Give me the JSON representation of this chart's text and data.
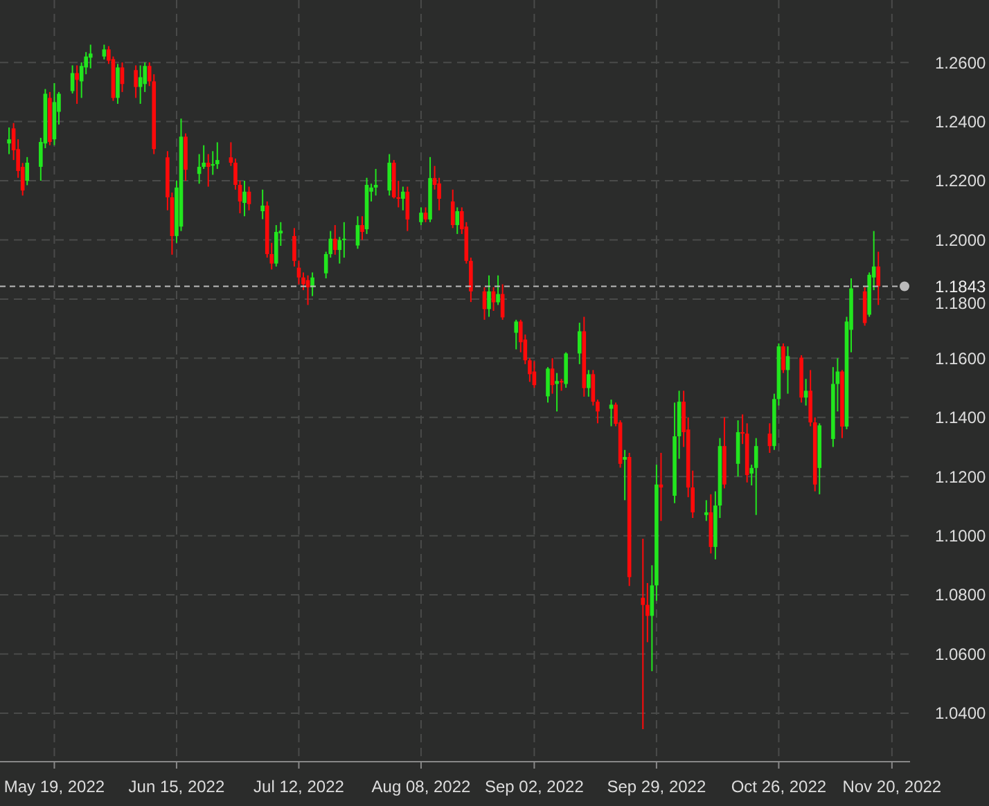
{
  "chart_data": {
    "type": "candlestick",
    "x": [
      "2022-05-09",
      "2022-05-10",
      "2022-05-11",
      "2022-05-12",
      "2022-05-13",
      "2022-05-16",
      "2022-05-17",
      "2022-05-18",
      "2022-05-19",
      "2022-05-20",
      "2022-05-23",
      "2022-05-24",
      "2022-05-25",
      "2022-05-26",
      "2022-05-27",
      "2022-05-30",
      "2022-05-31",
      "2022-06-01",
      "2022-06-02",
      "2022-06-03",
      "2022-06-06",
      "2022-06-07",
      "2022-06-08",
      "2022-06-09",
      "2022-06-10",
      "2022-06-13",
      "2022-06-14",
      "2022-06-15",
      "2022-06-16",
      "2022-06-17",
      "2022-06-20",
      "2022-06-21",
      "2022-06-22",
      "2022-06-23",
      "2022-06-24",
      "2022-06-27",
      "2022-06-28",
      "2022-06-29",
      "2022-06-30",
      "2022-07-01",
      "2022-07-04",
      "2022-07-05",
      "2022-07-06",
      "2022-07-07",
      "2022-07-08",
      "2022-07-11",
      "2022-07-12",
      "2022-07-13",
      "2022-07-14",
      "2022-07-15",
      "2022-07-18",
      "2022-07-19",
      "2022-07-20",
      "2022-07-21",
      "2022-07-22",
      "2022-07-25",
      "2022-07-26",
      "2022-07-27",
      "2022-07-28",
      "2022-07-29",
      "2022-08-01",
      "2022-08-02",
      "2022-08-03",
      "2022-08-04",
      "2022-08-05",
      "2022-08-08",
      "2022-08-09",
      "2022-08-10",
      "2022-08-11",
      "2022-08-12",
      "2022-08-15",
      "2022-08-16",
      "2022-08-17",
      "2022-08-18",
      "2022-08-19",
      "2022-08-22",
      "2022-08-23",
      "2022-08-24",
      "2022-08-25",
      "2022-08-26",
      "2022-08-29",
      "2022-08-30",
      "2022-08-31",
      "2022-09-01",
      "2022-09-02",
      "2022-09-05",
      "2022-09-06",
      "2022-09-07",
      "2022-09-08",
      "2022-09-09",
      "2022-09-12",
      "2022-09-13",
      "2022-09-14",
      "2022-09-15",
      "2022-09-16",
      "2022-09-19",
      "2022-09-20",
      "2022-09-21",
      "2022-09-22",
      "2022-09-23",
      "2022-09-26",
      "2022-09-27",
      "2022-09-28",
      "2022-09-29",
      "2022-09-30",
      "2022-10-03",
      "2022-10-04",
      "2022-10-05",
      "2022-10-06",
      "2022-10-07",
      "2022-10-10",
      "2022-10-11",
      "2022-10-12",
      "2022-10-13",
      "2022-10-14",
      "2022-10-17",
      "2022-10-18",
      "2022-10-19",
      "2022-10-20",
      "2022-10-21",
      "2022-10-24",
      "2022-10-25",
      "2022-10-26",
      "2022-10-27",
      "2022-10-28",
      "2022-10-31",
      "2022-11-01",
      "2022-11-02",
      "2022-11-03",
      "2022-11-04",
      "2022-11-07",
      "2022-11-08",
      "2022-11-09",
      "2022-11-10",
      "2022-11-11",
      "2022-11-14",
      "2022-11-15",
      "2022-11-16",
      "2022-11-17"
    ],
    "ohlc": [
      [
        1.2326,
        1.238,
        1.229,
        1.234
      ],
      [
        1.2377,
        1.2395,
        1.227,
        1.2303
      ],
      [
        1.2307,
        1.234,
        1.221,
        1.2233
      ],
      [
        1.2247,
        1.226,
        1.215,
        1.2167
      ],
      [
        1.22,
        1.228,
        1.2185,
        1.2261
      ],
      [
        1.2247,
        1.2345,
        1.22,
        1.2331
      ],
      [
        1.2326,
        1.251,
        1.231,
        1.2494
      ],
      [
        1.248,
        1.25,
        1.232,
        1.2331
      ],
      [
        1.234,
        1.253,
        1.232,
        1.2466
      ],
      [
        1.2433,
        1.25,
        1.239,
        1.2494
      ],
      [
        1.2503,
        1.259,
        1.2495,
        1.2564
      ],
      [
        1.2564,
        1.259,
        1.246,
        1.2541
      ],
      [
        1.2536,
        1.26,
        1.248,
        1.2588
      ],
      [
        1.2583,
        1.2635,
        1.256,
        1.262
      ],
      [
        1.2616,
        1.266,
        1.258,
        1.263
      ],
      [
        1.262,
        1.266,
        1.261,
        1.2644
      ],
      [
        1.2644,
        1.2655,
        1.2595,
        1.2606
      ],
      [
        1.2611,
        1.262,
        1.247,
        1.248
      ],
      [
        1.248,
        1.2595,
        1.246,
        1.2583
      ],
      [
        1.2583,
        1.26,
        1.25,
        1.2527
      ],
      [
        1.2574,
        1.259,
        1.248,
        1.2517
      ],
      [
        1.2517,
        1.259,
        1.246,
        1.255
      ],
      [
        1.2527,
        1.26,
        1.25,
        1.2588
      ],
      [
        1.2588,
        1.26,
        1.252,
        1.2536
      ],
      [
        1.2536,
        1.256,
        1.229,
        1.2307
      ],
      [
        1.2279,
        1.23,
        1.21,
        1.2144
      ],
      [
        1.2144,
        1.216,
        1.195,
        1.2013
      ],
      [
        1.2013,
        1.22,
        1.199,
        1.2177
      ],
      [
        1.2045,
        1.241,
        1.203,
        1.2349
      ],
      [
        1.2349,
        1.236,
        1.22,
        1.2237
      ],
      [
        1.2223,
        1.229,
        1.219,
        1.2247
      ],
      [
        1.2247,
        1.232,
        1.224,
        1.2261
      ],
      [
        1.2261,
        1.229,
        1.218,
        1.2247
      ],
      [
        1.2251,
        1.23,
        1.222,
        1.2256
      ],
      [
        1.2256,
        1.233,
        1.224,
        1.227
      ],
      [
        1.2279,
        1.233,
        1.225,
        1.2261
      ],
      [
        1.2261,
        1.2275,
        1.217,
        1.2186
      ],
      [
        1.2186,
        1.22,
        1.209,
        1.213
      ],
      [
        1.2125,
        1.22,
        1.208,
        1.2163
      ],
      [
        1.2163,
        1.218,
        1.21,
        1.2121
      ],
      [
        1.2097,
        1.217,
        1.207,
        1.2116
      ],
      [
        1.2116,
        1.213,
        1.194,
        1.1952
      ],
      [
        1.1952,
        1.199,
        1.19,
        1.192
      ],
      [
        1.192,
        1.205,
        1.191,
        1.2027
      ],
      [
        1.2022,
        1.206,
        1.198,
        1.2031
      ],
      [
        1.2013,
        1.204,
        1.191,
        1.1929
      ],
      [
        1.1906,
        1.193,
        1.185,
        1.1873
      ],
      [
        1.1873,
        1.189,
        1.183,
        1.185
      ],
      [
        1.1864,
        1.188,
        1.178,
        1.184
      ],
      [
        1.184,
        1.189,
        1.181,
        1.1873
      ],
      [
        1.1887,
        1.196,
        1.187,
        1.1952
      ],
      [
        1.1952,
        1.203,
        1.194,
        1.2004
      ],
      [
        1.2004,
        1.205,
        1.195,
        1.1966
      ],
      [
        1.1966,
        1.201,
        1.192,
        1.1999
      ],
      [
        1.1999,
        1.206,
        1.194,
        1.2004
      ],
      [
        1.1981,
        1.208,
        1.197,
        1.205
      ],
      [
        1.205,
        1.208,
        1.2,
        1.2027
      ],
      [
        1.2036,
        1.221,
        1.202,
        1.2186
      ],
      [
        1.2163,
        1.219,
        1.213,
        1.2177
      ],
      [
        1.2177,
        1.224,
        1.215,
        1.2186
      ],
      [
        1.2167,
        1.229,
        1.215,
        1.2261
      ],
      [
        1.2261,
        1.227,
        1.214,
        1.2144
      ],
      [
        1.2144,
        1.22,
        1.211,
        1.2139
      ],
      [
        1.2139,
        1.218,
        1.21,
        1.2163
      ],
      [
        1.2163,
        1.218,
        1.203,
        1.2069
      ],
      [
        1.206,
        1.211,
        1.205,
        1.2092
      ],
      [
        1.2092,
        1.211,
        1.206,
        1.2069
      ],
      [
        1.2069,
        1.228,
        1.206,
        1.2209
      ],
      [
        1.2209,
        1.225,
        1.217,
        1.2186
      ],
      [
        1.2191,
        1.221,
        1.21,
        1.2139
      ],
      [
        1.213,
        1.217,
        1.204,
        1.205
      ],
      [
        1.205,
        1.211,
        1.202,
        1.2097
      ],
      [
        1.2097,
        1.211,
        1.202,
        1.2036
      ],
      [
        1.2045,
        1.206,
        1.192,
        1.1929
      ],
      [
        1.1929,
        1.194,
        1.179,
        1.1826
      ],
      [
        1.1826,
        1.184,
        1.173,
        1.1766
      ],
      [
        1.1766,
        1.188,
        1.174,
        1.1826
      ],
      [
        1.1826,
        1.184,
        1.176,
        1.1789
      ],
      [
        1.1789,
        1.188,
        1.178,
        1.1817
      ],
      [
        1.1817,
        1.185,
        1.173,
        1.1738
      ],
      [
        1.1686,
        1.173,
        1.163,
        1.1724
      ],
      [
        1.1724,
        1.173,
        1.162,
        1.1654
      ],
      [
        1.1663,
        1.168,
        1.158,
        1.1593
      ],
      [
        1.1593,
        1.16,
        1.152,
        1.1546
      ],
      [
        1.1555,
        1.159,
        1.15,
        1.1509
      ],
      [
        1.1471,
        1.157,
        1.145,
        1.1565
      ],
      [
        1.1565,
        1.16,
        1.148,
        1.1509
      ],
      [
        1.1513,
        1.155,
        1.142,
        1.1523
      ],
      [
        1.1523,
        1.153,
        1.149,
        1.1518
      ],
      [
        1.1513,
        1.162,
        1.15,
        1.1616
      ],
      [
        1.1616,
        1.172,
        1.158,
        1.1691
      ],
      [
        1.1691,
        1.174,
        1.147,
        1.1499
      ],
      [
        1.1499,
        1.156,
        1.147,
        1.1546
      ],
      [
        1.1546,
        1.156,
        1.144,
        1.1453
      ],
      [
        1.1453,
        1.146,
        1.138,
        1.142
      ],
      [
        1.1429,
        1.146,
        1.137,
        1.1443
      ],
      [
        1.1443,
        1.145,
        1.137,
        1.1378
      ],
      [
        1.1383,
        1.139,
        1.123,
        1.1243
      ],
      [
        1.1257,
        1.129,
        1.112,
        1.1266
      ],
      [
        1.1266,
        1.128,
        1.083,
        1.086
      ],
      [
        1.079,
        1.099,
        1.0346,
        1.0766
      ],
      [
        1.0766,
        1.084,
        1.064,
        1.0729
      ],
      [
        1.0729,
        1.09,
        1.0542,
        1.0832
      ],
      [
        1.0832,
        1.124,
        1.078,
        1.1173
      ],
      [
        1.1173,
        1.128,
        1.105,
        1.1163
      ],
      [
        1.1135,
        1.145,
        1.111,
        1.1336
      ],
      [
        1.1336,
        1.149,
        1.126,
        1.1453
      ],
      [
        1.1453,
        1.149,
        1.13,
        1.135
      ],
      [
        1.1359,
        1.14,
        1.113,
        1.1163
      ],
      [
        1.1163,
        1.122,
        1.106,
        1.1079
      ],
      [
        1.107,
        1.112,
        1.105,
        1.1079
      ],
      [
        1.1079,
        1.114,
        1.094,
        1.0962
      ],
      [
        1.0962,
        1.115,
        1.092,
        1.1102
      ],
      [
        1.1102,
        1.133,
        1.106,
        1.1303
      ],
      [
        1.1303,
        1.14,
        1.116,
        1.1173
      ],
      [
        1.1243,
        1.139,
        1.12,
        1.135
      ],
      [
        1.135,
        1.141,
        1.131,
        1.1345
      ],
      [
        1.1345,
        1.138,
        1.118,
        1.1205
      ],
      [
        1.121,
        1.124,
        1.117,
        1.1229
      ],
      [
        1.1229,
        1.133,
        1.107,
        1.1303
      ],
      [
        1.1345,
        1.138,
        1.128,
        1.1303
      ],
      [
        1.1303,
        1.148,
        1.129,
        1.1462
      ],
      [
        1.1462,
        1.165,
        1.144,
        1.164
      ],
      [
        1.164,
        1.165,
        1.155,
        1.156
      ],
      [
        1.156,
        1.164,
        1.148,
        1.1607
      ],
      [
        1.1602,
        1.161,
        1.145,
        1.1467
      ],
      [
        1.1467,
        1.153,
        1.144,
        1.149
      ],
      [
        1.149,
        1.156,
        1.137,
        1.1383
      ],
      [
        1.1383,
        1.14,
        1.115,
        1.1173
      ],
      [
        1.1229,
        1.138,
        1.114,
        1.1373
      ],
      [
        1.1327,
        1.157,
        1.13,
        1.1513
      ],
      [
        1.1513,
        1.16,
        1.142,
        1.1555
      ],
      [
        1.1555,
        1.156,
        1.133,
        1.1369
      ],
      [
        1.1369,
        1.174,
        1.136,
        1.1724
      ],
      [
        1.1696,
        1.187,
        1.162,
        1.1836
      ],
      [
        1.1826,
        1.184,
        1.171,
        1.1719
      ],
      [
        1.1747,
        1.189,
        1.174,
        1.1882
      ],
      [
        1.1873,
        1.203,
        1.183,
        1.191
      ],
      [
        1.191,
        1.196,
        1.178,
        1.1843
      ]
    ],
    "xlim": [
      "2022-05-07",
      "2022-11-24"
    ],
    "xticks": [
      {
        "value": "2022-05-19",
        "label": "May 19, 2022"
      },
      {
        "value": "2022-06-15",
        "label": "Jun 15, 2022"
      },
      {
        "value": "2022-07-12",
        "label": "Jul 12, 2022"
      },
      {
        "value": "2022-08-08",
        "label": "Aug 08, 2022"
      },
      {
        "value": "2022-09-02",
        "label": "Sep 02, 2022"
      },
      {
        "value": "2022-09-29",
        "label": "Sep 29, 2022"
      },
      {
        "value": "2022-10-26",
        "label": "Oct 26, 2022"
      },
      {
        "value": "2022-11-20",
        "label": "Nov 20, 2022"
      }
    ],
    "ylim": [
      1.0236,
      1.2811
    ],
    "yticks": [
      {
        "value": 1.04,
        "label": "1.0400"
      },
      {
        "value": 1.06,
        "label": "1.0600"
      },
      {
        "value": 1.08,
        "label": "1.0800"
      },
      {
        "value": 1.1,
        "label": "1.1000"
      },
      {
        "value": 1.12,
        "label": "1.1200"
      },
      {
        "value": 1.14,
        "label": "1.1400"
      },
      {
        "value": 1.16,
        "label": "1.1600"
      },
      {
        "value": 1.18,
        "label": "1.1800"
      },
      {
        "value": 1.2,
        "label": "1.2000"
      },
      {
        "value": 1.22,
        "label": "1.2200"
      },
      {
        "value": 1.24,
        "label": "1.2400"
      },
      {
        "value": 1.26,
        "label": "1.2600"
      }
    ],
    "grid": true,
    "ref_lines": [
      {
        "axis": "y",
        "value": 1.1843,
        "label": "1.1843",
        "color": "#bbbbbb",
        "line_style": "dashed"
      }
    ]
  }
}
